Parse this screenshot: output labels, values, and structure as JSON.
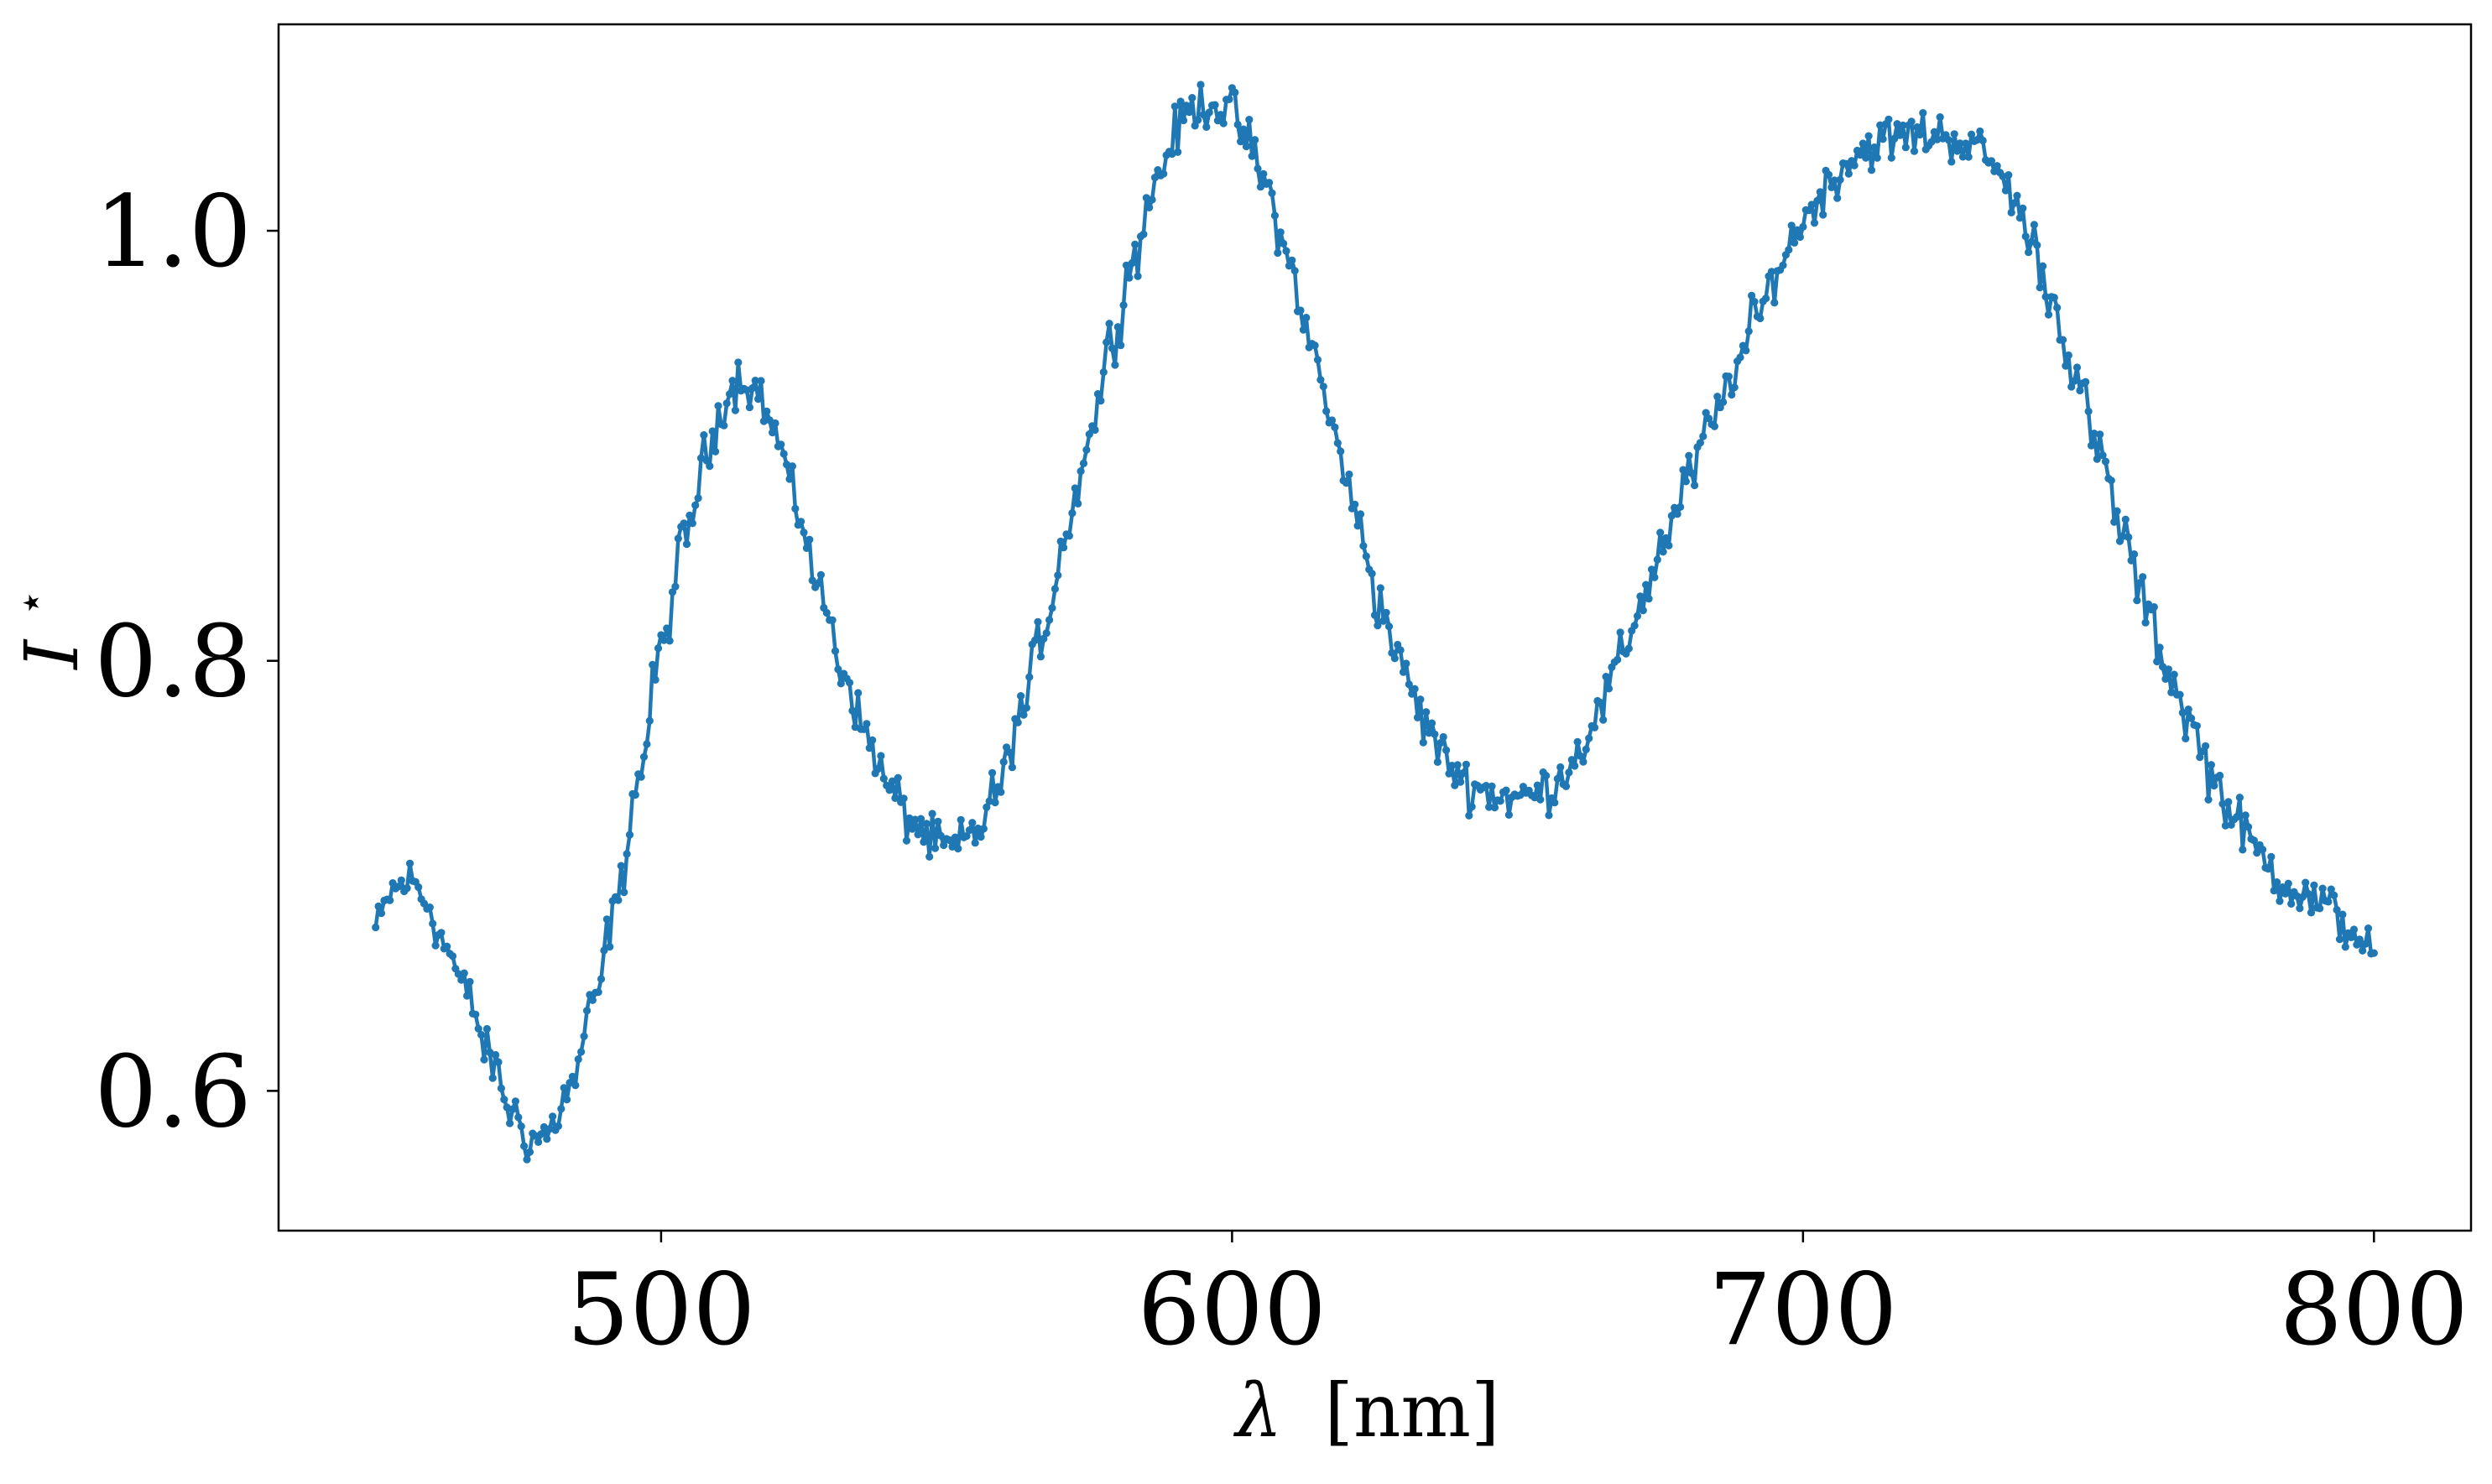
{
  "chart_data": {
    "type": "line",
    "xlabel_symbol": "λ",
    "xlabel_unit": "[nm]",
    "ylabel_symbol": "I",
    "ylabel_superscript": "⋆",
    "xlim": [
      433,
      817
    ],
    "ylim": [
      0.535,
      1.096
    ],
    "xticks": [
      500,
      600,
      700,
      800
    ],
    "xtick_labels": [
      "500",
      "600",
      "700",
      "800"
    ],
    "yticks": [
      0.6,
      0.8,
      1.0
    ],
    "ytick_labels": [
      "0.6",
      "0.8",
      "1.0"
    ],
    "grid": false,
    "line_color": "#1f77b4",
    "marker": "dot",
    "x_range": [
      450,
      800
    ],
    "x_step": 0.5,
    "anchors_x": [
      450,
      453,
      456,
      459,
      462,
      466,
      470,
      474,
      477,
      480,
      484,
      488,
      492,
      496,
      500,
      504,
      508,
      511,
      514,
      517,
      520,
      524,
      528,
      532,
      536,
      540,
      544,
      548,
      551,
      555,
      559,
      563,
      567,
      571,
      575,
      579,
      583,
      587,
      590,
      593,
      596,
      600,
      603,
      606,
      610,
      614,
      618,
      622,
      626,
      630,
      634,
      638,
      642,
      646,
      650,
      653,
      656,
      660,
      664,
      668,
      672,
      676,
      680,
      684,
      688,
      692,
      696,
      700,
      704,
      708,
      712,
      716,
      720,
      724,
      728,
      732,
      736,
      740,
      744,
      748,
      752,
      756,
      760,
      764,
      768,
      772,
      776,
      780,
      784,
      788,
      792,
      796,
      800
    ],
    "anchors_y": [
      0.675,
      0.693,
      0.698,
      0.688,
      0.668,
      0.645,
      0.615,
      0.59,
      0.577,
      0.58,
      0.6,
      0.638,
      0.685,
      0.745,
      0.805,
      0.855,
      0.895,
      0.922,
      0.932,
      0.925,
      0.905,
      0.87,
      0.83,
      0.795,
      0.765,
      0.74,
      0.725,
      0.715,
      0.712,
      0.72,
      0.74,
      0.775,
      0.815,
      0.86,
      0.905,
      0.95,
      0.99,
      1.025,
      1.045,
      1.057,
      1.06,
      1.055,
      1.04,
      1.02,
      0.985,
      0.945,
      0.905,
      0.865,
      0.825,
      0.795,
      0.77,
      0.752,
      0.742,
      0.738,
      0.736,
      0.738,
      0.742,
      0.755,
      0.775,
      0.8,
      0.83,
      0.858,
      0.885,
      0.91,
      0.935,
      0.96,
      0.985,
      1.005,
      1.02,
      1.033,
      1.04,
      1.043,
      1.045,
      1.045,
      1.042,
      1.035,
      1.02,
      0.995,
      0.965,
      0.93,
      0.895,
      0.86,
      0.825,
      0.795,
      0.77,
      0.745,
      0.725,
      0.71,
      0.698,
      0.69,
      0.685,
      0.675,
      0.665
    ],
    "noise_amplitude": 0.007
  }
}
